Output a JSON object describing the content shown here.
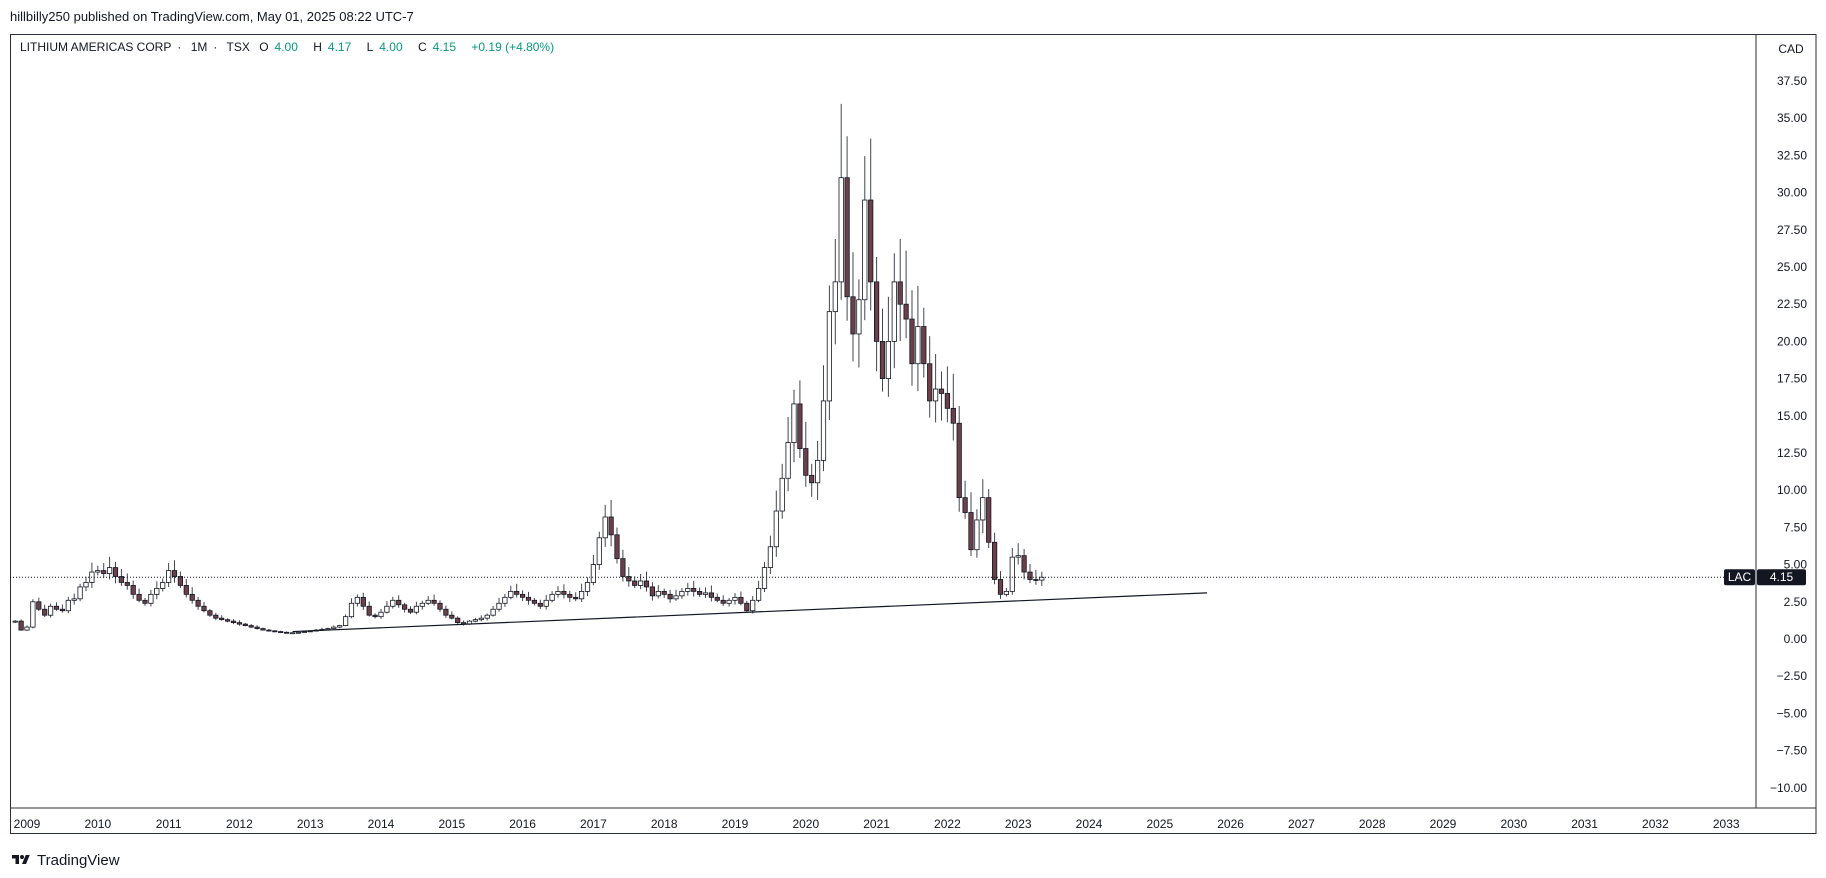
{
  "header": {
    "publish_line": "hillbilly250 published on TradingView.com, May 01, 2025 08:22 UTC-7"
  },
  "legend": {
    "symbol_name": "LITHIUM AMERICAS CORP",
    "interval": "1M",
    "exchange": "TSX",
    "open_label": "O",
    "open_value": "4.00",
    "high_label": "H",
    "high_value": "4.17",
    "low_label": "L",
    "low_value": "4.00",
    "close_label": "C",
    "close_value": "4.15",
    "change": "+0.19 (+4.80%)"
  },
  "price_axis": {
    "currency": "CAD",
    "ticks": [
      "37.50",
      "35.00",
      "32.50",
      "30.00",
      "27.50",
      "25.00",
      "22.50",
      "20.00",
      "17.50",
      "15.00",
      "12.50",
      "10.00",
      "7.50",
      "5.00",
      "2.50",
      "0.00",
      "−2.50",
      "−5.00",
      "−7.50",
      "−10.00"
    ],
    "last_price_ticker": "LAC",
    "last_price": "4.15"
  },
  "time_axis": {
    "ticks": [
      "2009",
      "2010",
      "2011",
      "2012",
      "2013",
      "2014",
      "2015",
      "2016",
      "2017",
      "2018",
      "2019",
      "2020",
      "2021",
      "2022",
      "2023",
      "2024",
      "2025",
      "2026",
      "2027",
      "2028",
      "2029",
      "2030",
      "2031",
      "2032",
      "2033"
    ]
  },
  "footer": {
    "brand": "TradingView"
  },
  "colors": {
    "up_fill": "#ffffff",
    "down_fill": "#6b4048",
    "wick": "#434651",
    "trendline": "#131722",
    "change_green": "#089981",
    "badge_bg": "#131722"
  },
  "chart_data": {
    "type": "candlestick",
    "interval": "1M",
    "ylim": [
      -11.5,
      39.5
    ],
    "xlim_years": [
      2009,
      2033.5
    ],
    "last_close": 4.15,
    "trendline": [
      {
        "x": "2012-10",
        "y": 0.5
      },
      {
        "x": "2025-09",
        "y": 3.1
      }
    ],
    "months_start": "2008-11",
    "closes": [
      1.2,
      0.6,
      0.8,
      2.5,
      2.0,
      1.6,
      2.2,
      2.0,
      1.9,
      2.6,
      2.7,
      3.5,
      3.8,
      4.5,
      4.6,
      4.4,
      4.8,
      4.2,
      3.8,
      3.6,
      3.0,
      2.6,
      2.4,
      3.0,
      3.4,
      3.8,
      4.6,
      4.2,
      3.6,
      3.0,
      2.6,
      2.2,
      1.9,
      1.6,
      1.4,
      1.3,
      1.2,
      1.1,
      1.0,
      0.9,
      0.8,
      0.7,
      0.6,
      0.55,
      0.5,
      0.45,
      0.4,
      0.42,
      0.45,
      0.5,
      0.55,
      0.6,
      0.65,
      0.7,
      0.8,
      0.9,
      1.5,
      2.4,
      2.8,
      2.2,
      1.6,
      1.5,
      1.8,
      2.2,
      2.6,
      2.3,
      2.0,
      1.8,
      2.2,
      2.4,
      2.6,
      2.4,
      2.0,
      1.6,
      1.4,
      1.1,
      1.0,
      1.2,
      1.3,
      1.4,
      1.6,
      2.0,
      2.4,
      2.8,
      3.2,
      3.0,
      2.8,
      2.6,
      2.4,
      2.2,
      2.6,
      3.0,
      3.2,
      3.0,
      2.8,
      2.7,
      3.2,
      3.8,
      5.0,
      6.8,
      8.2,
      7.0,
      5.4,
      4.2,
      3.9,
      3.6,
      3.9,
      3.5,
      2.9,
      3.2,
      3.0,
      2.7,
      2.9,
      3.2,
      3.4,
      3.2,
      3.0,
      3.1,
      2.8,
      2.6,
      2.4,
      2.6,
      2.8,
      2.4,
      1.9,
      2.6,
      3.4,
      4.8,
      6.2,
      8.6,
      10.8,
      13.2,
      15.8,
      12.8,
      11.0,
      10.5,
      12.0,
      16.0,
      22.0,
      24.0,
      31.0,
      23.0,
      20.5,
      22.8,
      29.5,
      24.0,
      20.0,
      17.5,
      20.0,
      24.0,
      22.5,
      21.5,
      18.5,
      21.0,
      18.5,
      16.0,
      16.8,
      16.5,
      15.5,
      14.5,
      9.5,
      8.5,
      6.0,
      8.0,
      9.5,
      6.5,
      4.0,
      3.0,
      3.2,
      5.5,
      5.6,
      4.5,
      4.0,
      3.96,
      4.15
    ]
  }
}
